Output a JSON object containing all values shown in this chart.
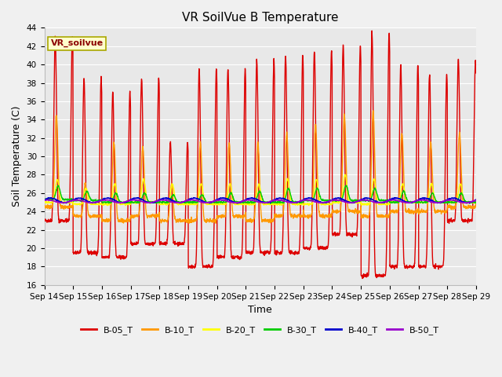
{
  "title": "VR SoilVue B Temperature",
  "xlabel": "Time",
  "ylabel": "Soil Temperature (C)",
  "ylim": [
    16,
    44
  ],
  "yticks": [
    16,
    18,
    20,
    22,
    24,
    26,
    28,
    30,
    32,
    34,
    36,
    38,
    40,
    42,
    44
  ],
  "x_labels": [
    "Sep 14",
    "Sep 15",
    "Sep 16",
    "Sep 17",
    "Sep 18",
    "Sep 19",
    "Sep 20",
    "Sep 21",
    "Sep 22",
    "Sep 23",
    "Sep 24",
    "Sep 25",
    "Sep 26",
    "Sep 27",
    "Sep 28",
    "Sep 29"
  ],
  "n_days": 15,
  "series": {
    "B-05_T": {
      "color": "#dd0000",
      "lw": 1.0
    },
    "B-10_T": {
      "color": "#ff9900",
      "lw": 1.0
    },
    "B-20_T": {
      "color": "#ffff00",
      "lw": 1.0
    },
    "B-30_T": {
      "color": "#00cc00",
      "lw": 1.0
    },
    "B-40_T": {
      "color": "#0000cc",
      "lw": 1.0
    },
    "B-50_T": {
      "color": "#9900cc",
      "lw": 1.0
    }
  },
  "legend_label": "VR_soilvue",
  "background_color": "#f0f0f0",
  "plot_bg_color": "#e8e8e8",
  "grid_color": "#ffffff",
  "title_fontsize": 11,
  "axis_fontsize": 9,
  "tick_fontsize": 7.5
}
